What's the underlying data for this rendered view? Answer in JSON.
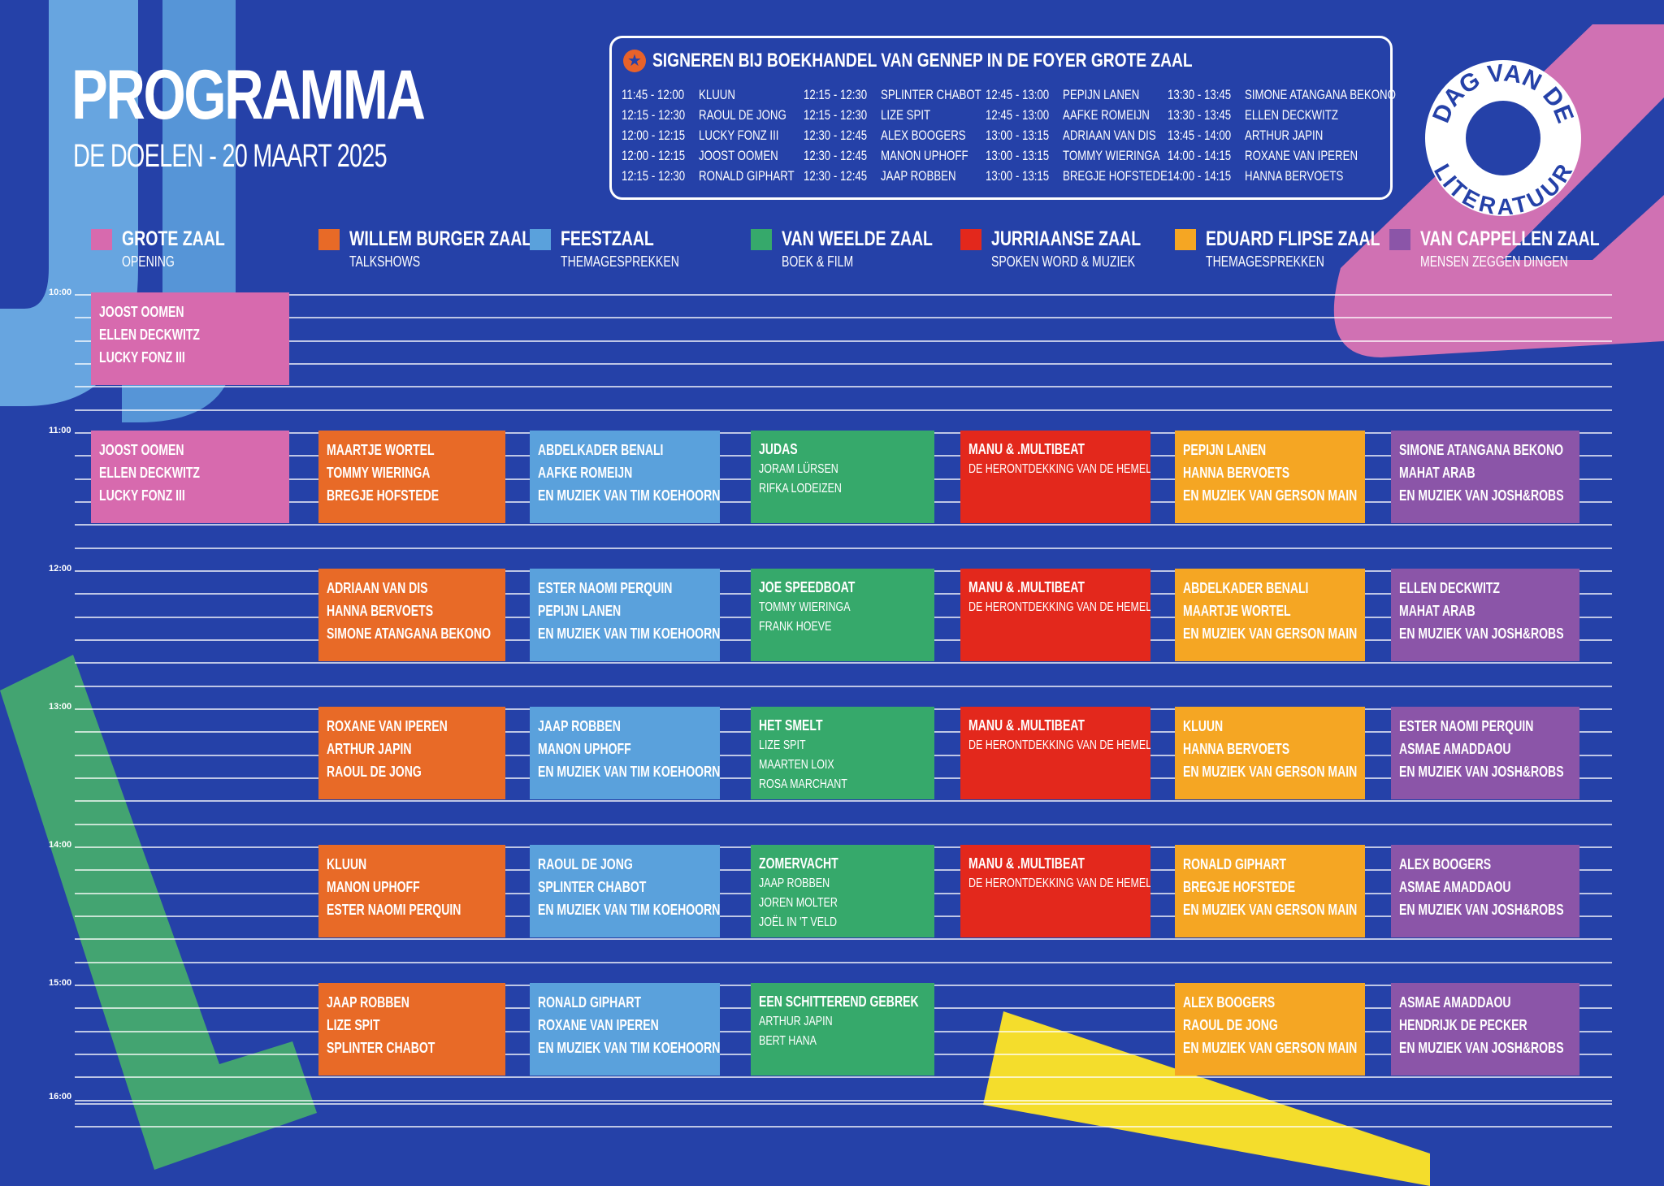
{
  "title": "PROGRAMMA",
  "subtitle": "DE DOELEN - 20 MAART 2025",
  "logo": {
    "line1": "DAG VAN DE",
    "line2": "LITERATUUR"
  },
  "signing": {
    "icon": "star-icon",
    "title": "SIGNEREN BIJ BOEKHANDEL VAN GENNEP IN DE FOYER GROTE ZAAL",
    "columns": [
      [
        {
          "time": "11:45 - 12:00",
          "name": "KLUUN"
        },
        {
          "time": "12:15 - 12:30",
          "name": "RAOUL DE JONG"
        },
        {
          "time": "12:00 - 12:15",
          "name": "LUCKY FONZ III"
        },
        {
          "time": "12:00 - 12:15",
          "name": "JOOST OOMEN"
        },
        {
          "time": "12:15 - 12:30",
          "name": "RONALD GIPHART"
        }
      ],
      [
        {
          "time": "12:15 - 12:30",
          "name": "SPLINTER CHABOT"
        },
        {
          "time": "12:15 - 12:30",
          "name": "LIZE SPIT"
        },
        {
          "time": "12:30 - 12:45",
          "name": "ALEX BOOGERS"
        },
        {
          "time": "12:30 - 12:45",
          "name": "MANON UPHOFF"
        },
        {
          "time": "12:30 - 12:45",
          "name": "JAAP ROBBEN"
        }
      ],
      [
        {
          "time": "12:45 - 13:00",
          "name": "PEPIJN LANEN"
        },
        {
          "time": "12:45 - 13:00",
          "name": "AAFKE ROMEIJN"
        },
        {
          "time": "13:00 - 13:15",
          "name": "ADRIAAN VAN DIS"
        },
        {
          "time": "13:00 - 13:15",
          "name": "TOMMY WIERINGA"
        },
        {
          "time": "13:00 - 13:15",
          "name": "BREGJE HOFSTEDE"
        }
      ],
      [
        {
          "time": "13:30 - 13:45",
          "name": "SIMONE ATANGANA BEKONO"
        },
        {
          "time": "13:30 - 13:45",
          "name": "ELLEN DECKWITZ"
        },
        {
          "time": "13:45 - 14:00",
          "name": "ARTHUR JAPIN"
        },
        {
          "time": "14:00 - 14:15",
          "name": "ROXANE VAN IPEREN"
        },
        {
          "time": "14:00 - 14:15",
          "name": "HANNA BERVOETS"
        }
      ]
    ]
  },
  "rooms": [
    {
      "name": "GROTE ZAAL",
      "sub": "OPENING",
      "color": "#d76aae"
    },
    {
      "name": "WILLEM BURGER ZAAL",
      "sub": "TALKSHOWS",
      "color": "#e86a27"
    },
    {
      "name": "FEESTZAAL",
      "sub": "THEMAGESPREKKEN",
      "color": "#5aa1dc"
    },
    {
      "name": "VAN WEELDE ZAAL",
      "sub": "BOEK & FILM",
      "color": "#36a96b"
    },
    {
      "name": "JURRIAANSE ZAAL",
      "sub": "SPOKEN WORD & MUZIEK",
      "color": "#e3281c"
    },
    {
      "name": "EDUARD FLIPSE ZAAL",
      "sub": "THEMAGESPREKKEN",
      "color": "#f5a623"
    },
    {
      "name": "VAN CAPPELLEN ZAAL",
      "sub": "MENSEN ZEGGEN DINGEN",
      "color": "#8b55a8"
    }
  ],
  "times": [
    "10:00",
    "11:00",
    "12:00",
    "13:00",
    "14:00",
    "15:00",
    "16:00"
  ],
  "sessions": [
    {
      "room": 0,
      "slot": 0,
      "lines": [
        "JOOST OOMEN",
        "ELLEN DECKWITZ",
        "LUCKY FONZ III"
      ]
    },
    {
      "room": 0,
      "slot": 1,
      "lines": [
        "JOOST OOMEN",
        "ELLEN DECKWITZ",
        "LUCKY FONZ III"
      ]
    },
    {
      "room": 1,
      "slot": 1,
      "lines": [
        "MAARTJE WORTEL",
        "TOMMY WIERINGA",
        "BREGJE HOFSTEDE"
      ]
    },
    {
      "room": 1,
      "slot": 2,
      "lines": [
        "ADRIAAN VAN DIS",
        "HANNA BERVOETS",
        "SIMONE ATANGANA BEKONO"
      ]
    },
    {
      "room": 1,
      "slot": 3,
      "lines": [
        "ROXANE VAN IPEREN",
        "ARTHUR JAPIN",
        "RAOUL DE JONG"
      ]
    },
    {
      "room": 1,
      "slot": 4,
      "lines": [
        "KLUUN",
        "MANON UPHOFF",
        "ESTER NAOMI PERQUIN"
      ]
    },
    {
      "room": 1,
      "slot": 5,
      "lines": [
        "JAAP ROBBEN",
        "LIZE SPIT",
        "SPLINTER CHABOT"
      ]
    },
    {
      "room": 2,
      "slot": 1,
      "lines": [
        "ABDELKADER BENALI",
        "AAFKE ROMEIJN",
        "EN MUZIEK VAN TIM KOEHOORN"
      ]
    },
    {
      "room": 2,
      "slot": 2,
      "lines": [
        "ESTER NAOMI PERQUIN",
        "PEPIJN LANEN",
        "EN MUZIEK VAN TIM KOEHOORN"
      ]
    },
    {
      "room": 2,
      "slot": 3,
      "lines": [
        "JAAP ROBBEN",
        "MANON UPHOFF",
        "EN MUZIEK VAN TIM KOEHOORN"
      ]
    },
    {
      "room": 2,
      "slot": 4,
      "lines": [
        "RAOUL DE JONG",
        "SPLINTER CHABOT",
        "EN MUZIEK VAN TIM KOEHOORN"
      ]
    },
    {
      "room": 2,
      "slot": 5,
      "lines": [
        "RONALD GIPHART",
        "ROXANE VAN IPEREN",
        "EN MUZIEK VAN TIM KOEHOORN"
      ]
    },
    {
      "room": 3,
      "slot": 1,
      "title": "JUDAS",
      "lines": [
        "JORAM LÜRSEN",
        "RIFKA LODEIZEN"
      ]
    },
    {
      "room": 3,
      "slot": 2,
      "title": "JOE SPEEDBOAT",
      "lines": [
        "TOMMY WIERINGA",
        "FRANK HOEVE"
      ]
    },
    {
      "room": 3,
      "slot": 3,
      "title": "HET SMELT",
      "lines": [
        "LIZE SPIT",
        "MAARTEN LOIX",
        "ROSA MARCHANT"
      ]
    },
    {
      "room": 3,
      "slot": 4,
      "title": "ZOMERVACHT",
      "lines": [
        "JAAP ROBBEN",
        "JOREN MOLTER",
        "JOËL IN 'T VELD"
      ]
    },
    {
      "room": 3,
      "slot": 5,
      "title": "EEN SCHITTEREND GEBREK",
      "lines": [
        "ARTHUR JAPIN",
        "BERT HANA"
      ]
    },
    {
      "room": 4,
      "slot": 1,
      "title": "MANU & .MULTIBEAT",
      "lines": [
        "DE HERONTDEKKING VAN DE HEMEL"
      ]
    },
    {
      "room": 4,
      "slot": 2,
      "title": "MANU & .MULTIBEAT",
      "lines": [
        "DE HERONTDEKKING VAN DE HEMEL"
      ]
    },
    {
      "room": 4,
      "slot": 3,
      "title": "MANU & .MULTIBEAT",
      "lines": [
        "DE HERONTDEKKING VAN DE HEMEL"
      ]
    },
    {
      "room": 4,
      "slot": 4,
      "title": "MANU & .MULTIBEAT",
      "lines": [
        "DE HERONTDEKKING VAN DE HEMEL"
      ]
    },
    {
      "room": 5,
      "slot": 1,
      "lines": [
        "PEPIJN LANEN",
        "HANNA BERVOETS",
        "EN MUZIEK VAN GERSON MAIN"
      ]
    },
    {
      "room": 5,
      "slot": 2,
      "lines": [
        "ABDELKADER BENALI",
        "MAARTJE WORTEL",
        "EN MUZIEK VAN GERSON MAIN"
      ]
    },
    {
      "room": 5,
      "slot": 3,
      "lines": [
        "KLUUN",
        "HANNA BERVOETS",
        "EN MUZIEK VAN GERSON MAIN"
      ]
    },
    {
      "room": 5,
      "slot": 4,
      "lines": [
        "RONALD GIPHART",
        "BREGJE HOFSTEDE",
        "EN MUZIEK VAN GERSON MAIN"
      ]
    },
    {
      "room": 5,
      "slot": 5,
      "lines": [
        "ALEX BOOGERS",
        "RAOUL DE JONG",
        "EN MUZIEK VAN GERSON MAIN"
      ]
    },
    {
      "room": 6,
      "slot": 1,
      "lines": [
        "SIMONE ATANGANA BEKONO",
        "MAHAT ARAB",
        "EN MUZIEK VAN JOSH&ROBS"
      ]
    },
    {
      "room": 6,
      "slot": 2,
      "lines": [
        "ELLEN DECKWITZ",
        "MAHAT ARAB",
        "EN MUZIEK VAN JOSH&ROBS"
      ]
    },
    {
      "room": 6,
      "slot": 3,
      "lines": [
        "ESTER NAOMI PERQUIN",
        "ASMAE AMADDAOU",
        "EN MUZIEK VAN JOSH&ROBS"
      ]
    },
    {
      "room": 6,
      "slot": 4,
      "lines": [
        "ALEX BOOGERS",
        "ASMAE AMADDAOU",
        "EN MUZIEK VAN JOSH&ROBS"
      ]
    },
    {
      "room": 6,
      "slot": 5,
      "lines": [
        "ASMAE AMADDAOU",
        "HENDRIJK DE PECKER",
        "EN MUZIEK VAN JOSH&ROBS"
      ]
    }
  ]
}
